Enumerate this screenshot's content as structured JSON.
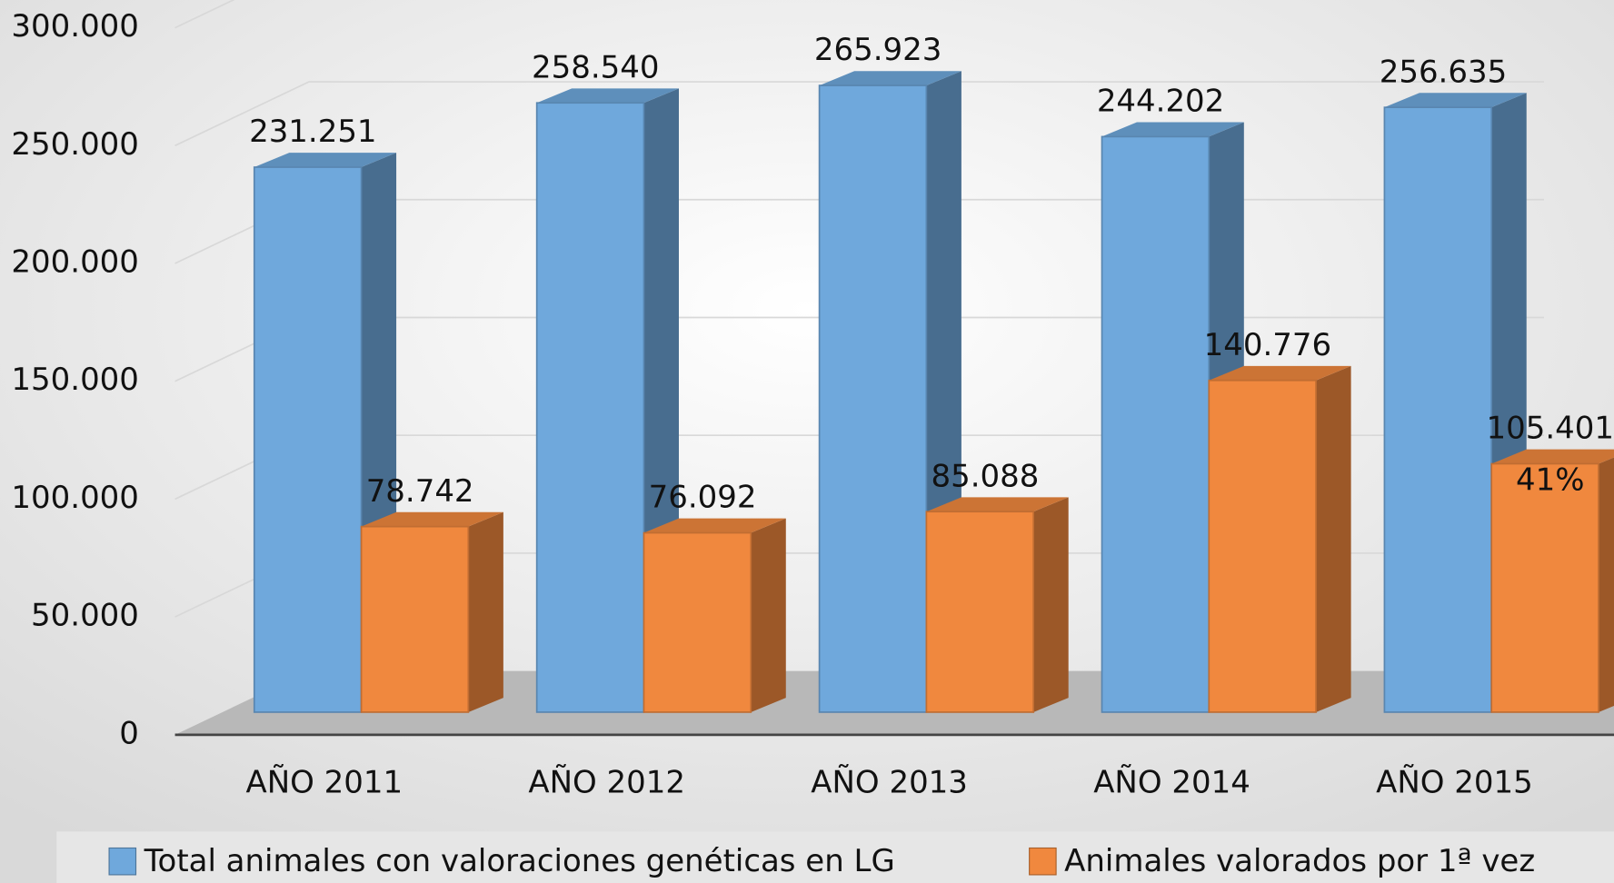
{
  "chart_data": {
    "type": "bar3d",
    "categories": [
      "AÑO 2011",
      "AÑO 2012",
      "AÑO 2013",
      "AÑO 2014",
      "AÑO 2015"
    ],
    "series": [
      {
        "name": "Total animales con valoraciones genéticas en LG",
        "color": "#6fa8dc",
        "values": [
          231251,
          258540,
          265923,
          244202,
          256635
        ],
        "value_labels": [
          "231.251",
          "258.540",
          "265.923",
          "244.202",
          "256.635"
        ]
      },
      {
        "name": "Animales valorados por 1ª vez",
        "color": "#f0883e",
        "values": [
          78742,
          76092,
          85088,
          140776,
          105401
        ],
        "value_labels": [
          "78.742",
          "76.092",
          "85.088",
          "140.776",
          "105.401"
        ]
      }
    ],
    "annotations": [
      "41%"
    ],
    "ylim": [
      0,
      300000
    ],
    "yticks": [
      0,
      {
        "value": 50000,
        "label": "50.000"
      },
      {
        "value": 100000,
        "label": "100.000"
      },
      {
        "value": 150000,
        "label": "150.000"
      },
      {
        "value": 200000,
        "label": "200.000"
      },
      {
        "value": 250000,
        "label": "250.000"
      },
      {
        "value": 300000,
        "label": "300.000"
      }
    ],
    "grid": true,
    "legend": "bottom"
  }
}
